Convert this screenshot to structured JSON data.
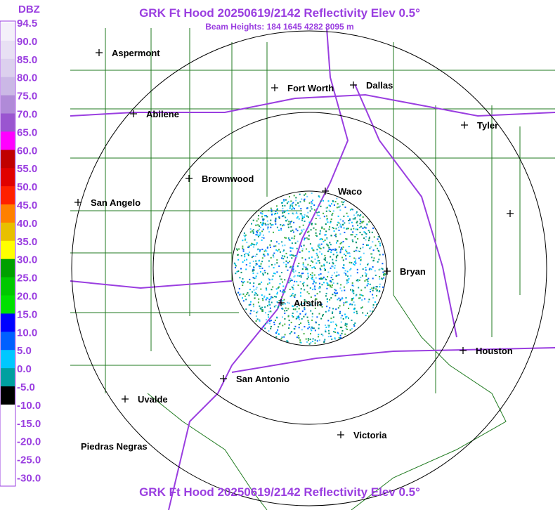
{
  "header": {
    "title": "GRK Ft Hood 20250619/2142 Reflectivity Elev 0.5°",
    "subtitle": "Beam Heights: 184 1645 4282 8095 m"
  },
  "footer": {
    "title": "GRK Ft Hood 20250619/2142 Reflectivity Elev 0.5°"
  },
  "colorbar": {
    "unit": "DBZ",
    "labels": [
      "94.5",
      "90.0",
      "85.0",
      "80.0",
      "75.0",
      "70.0",
      "65.0",
      "60.0",
      "55.0",
      "50.0",
      "45.0",
      "40.0",
      "35.0",
      "30.0",
      "25.0",
      "20.0",
      "15.0",
      "10.0",
      "5.0",
      "0.0",
      "-5.0",
      "-10.0",
      "-15.0",
      "-20.0",
      "-25.0",
      "-30.0"
    ]
  },
  "cities": [
    {
      "label": "Aspermont"
    },
    {
      "label": "Abilene"
    },
    {
      "label": "Fort Worth"
    },
    {
      "label": "Dallas"
    },
    {
      "label": "Tyler"
    },
    {
      "label": "Brownwood"
    },
    {
      "label": "Waco"
    },
    {
      "label": "San Angelo"
    },
    {
      "label": "Bryan"
    },
    {
      "label": "Austin"
    },
    {
      "label": "Houston"
    },
    {
      "label": "San Antonio"
    },
    {
      "label": "Uvalde"
    },
    {
      "label": "Victoria"
    },
    {
      "label": "Piedras Negras"
    }
  ]
}
